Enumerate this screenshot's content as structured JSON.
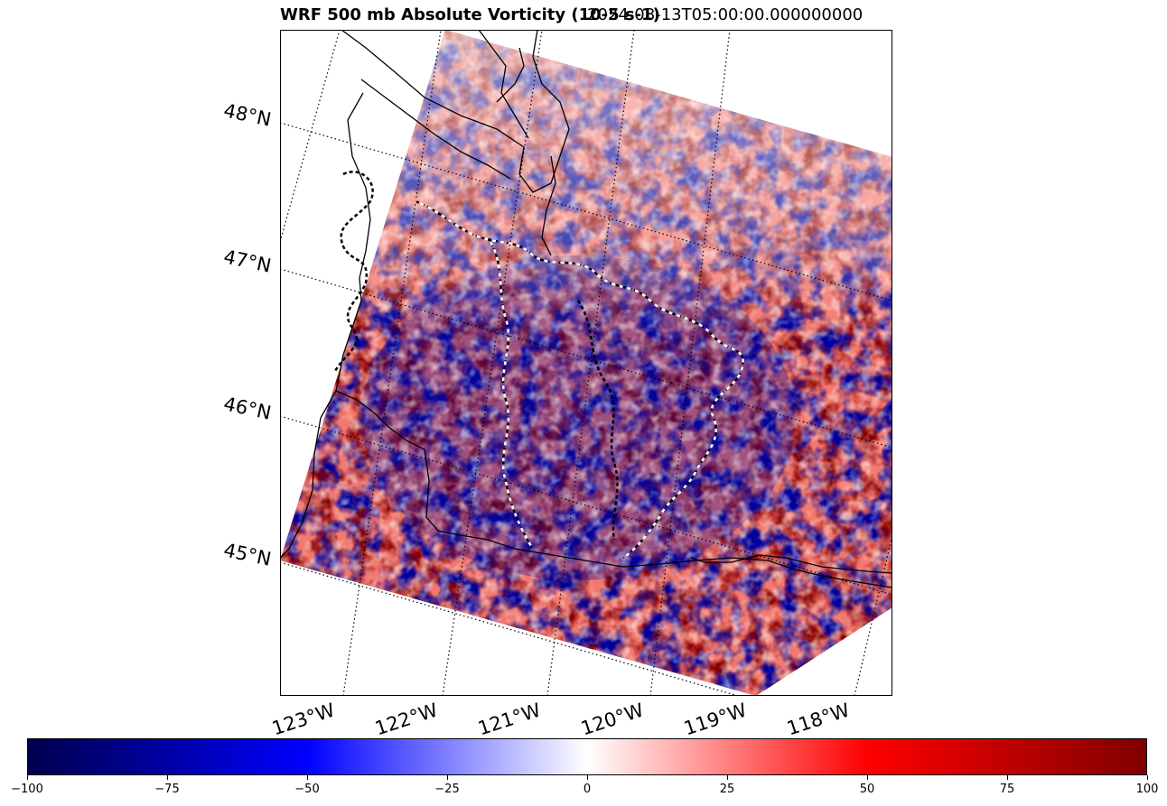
{
  "title": {
    "main": "WRF 500 mb Absolute Vorticity (10-5 s-1)",
    "time": "2024-08-13T05:00:00.000000000"
  },
  "map": {
    "lat_labels": [
      "48°N",
      "47°N",
      "46°N",
      "45°N"
    ],
    "lon_labels": [
      "123°W",
      "122°W",
      "121°W",
      "120°W",
      "119°W",
      "118°W"
    ],
    "gridlines": "dotted",
    "colormap": "seismic"
  },
  "colorbar": {
    "min": -100,
    "max": 100,
    "tick_labels": [
      "−100",
      "−75",
      "−50",
      "−25",
      "0",
      "25",
      "50",
      "75",
      "100"
    ],
    "colors": [
      "#00004c",
      "#0000ff",
      "#ffffff",
      "#ff0000",
      "#800000"
    ]
  }
}
